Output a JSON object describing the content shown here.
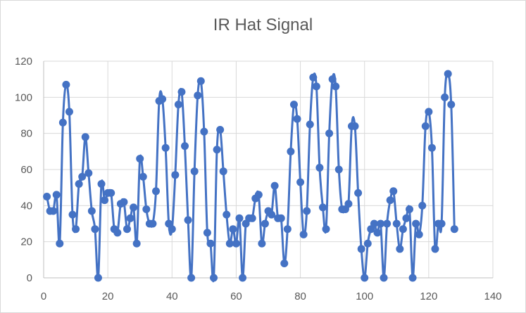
{
  "chart_data": {
    "type": "line",
    "title": "IR Hat Signal",
    "xlabel": "",
    "ylabel": "",
    "xlim": [
      0,
      140
    ],
    "ylim": [
      0,
      120
    ],
    "x_ticks": [
      0,
      20,
      40,
      60,
      80,
      100,
      120,
      140
    ],
    "y_ticks": [
      0,
      20,
      40,
      60,
      80,
      100,
      120
    ],
    "grid": true,
    "legend": "none",
    "series": [
      {
        "color": "#4472c4",
        "x": [
          1,
          2,
          3,
          4,
          5,
          6,
          7,
          8,
          9,
          10,
          11,
          12,
          13,
          14,
          15,
          16,
          17,
          18,
          19,
          20,
          21,
          22,
          23,
          24,
          25,
          26,
          27,
          28,
          29,
          30,
          31,
          32,
          33,
          34,
          35,
          36,
          37,
          38,
          39,
          40,
          41,
          42,
          43,
          44,
          45,
          46,
          47,
          48,
          49,
          50,
          51,
          52,
          53,
          54,
          55,
          56,
          57,
          58,
          59,
          60,
          61,
          62,
          63,
          64,
          65,
          66,
          67,
          68,
          69,
          70,
          71,
          72,
          73,
          74,
          75,
          76,
          77,
          78,
          79,
          80,
          81,
          82,
          83,
          84,
          85,
          86,
          87,
          88,
          89,
          90,
          91,
          92,
          93,
          94,
          95,
          96,
          97,
          98,
          99,
          100,
          101,
          102,
          103,
          104,
          105,
          106,
          107,
          108,
          109,
          110,
          111,
          112,
          113,
          114,
          115,
          116,
          117,
          118,
          119,
          120,
          121,
          122,
          123,
          124,
          125,
          126,
          127,
          128
        ],
        "y": [
          45,
          37,
          37,
          46,
          19,
          86,
          107,
          92,
          35,
          27,
          52,
          56,
          78,
          58,
          37,
          27,
          0,
          52,
          43,
          47,
          47,
          27,
          25,
          41,
          42,
          27,
          33,
          39,
          19,
          66,
          56,
          38,
          30,
          30,
          48,
          98,
          99,
          72,
          30,
          27,
          57,
          96,
          103,
          73,
          32,
          0,
          59,
          101,
          109,
          81,
          25,
          19,
          0,
          71,
          82,
          59,
          35,
          19,
          27,
          19,
          33,
          0,
          30,
          33,
          33,
          44,
          46,
          19,
          30,
          37,
          35,
          51,
          33,
          33,
          8,
          27,
          70,
          96,
          88,
          53,
          24,
          37,
          85,
          111,
          106,
          61,
          39,
          27,
          80,
          110,
          106,
          60,
          38,
          38,
          41,
          84,
          84,
          47,
          16,
          0,
          19,
          27,
          30,
          25,
          30,
          0,
          30,
          43,
          48,
          30,
          16,
          27,
          33,
          38,
          0,
          30,
          24,
          40,
          84,
          92,
          72,
          16,
          30,
          30,
          100,
          113,
          96,
          27
        ]
      }
    ]
  }
}
